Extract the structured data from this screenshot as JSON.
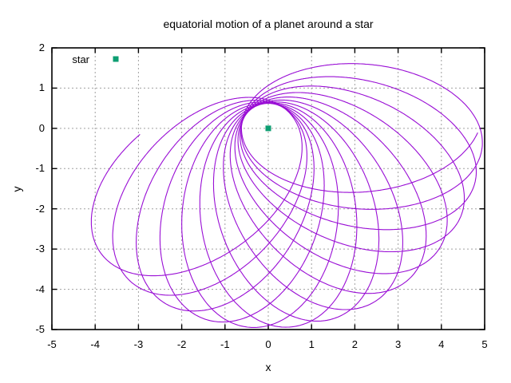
{
  "title": "equatorial motion of a planet around a star",
  "chart_data": {
    "type": "line",
    "title": "equatorial motion of a planet around a star",
    "xlabel": "x",
    "ylabel": "y",
    "xlim": [
      -5,
      5
    ],
    "ylim": [
      -5,
      2
    ],
    "xticks": [
      "-5",
      "-4",
      "-3",
      "-2",
      "-1",
      "0",
      "1",
      "2",
      "3",
      "4",
      "5"
    ],
    "yticks": [
      "2",
      "1",
      "0",
      "-1",
      "-2",
      "-3",
      "-4",
      "-5"
    ],
    "grid": true,
    "legend": {
      "position": "top-left",
      "entries": [
        {
          "label": "star",
          "marker": "filled-square",
          "color": "#0d9e72"
        }
      ]
    },
    "points": [
      {
        "name": "star",
        "x": 0,
        "y": 0,
        "marker": "filled-square",
        "color": "#0d9e72",
        "size": 7
      }
    ],
    "series": [
      {
        "name": "planet trajectory",
        "color": "#9400d3",
        "model": "precessing ellipse around focus: r(X)=p/(1+e*cos X), phi=phi_start+(X-X_start)/k, counterclockwise motion with prograde apsidal precession",
        "params": {
          "p": 1.102,
          "e": 0.778,
          "k": 0.9698,
          "phi_start_deg": 183,
          "X_start_deg": 144,
          "X_end_deg": 4853,
          "step_deg": 0.5,
          "perihelion_distance": 0.62,
          "aphelion_distance": 4.96,
          "precession_per_orbit_deg": 11.2,
          "start_point": [
            -2.97,
            -0.16
          ],
          "end_point": [
            4.84,
            -0.12
          ]
        }
      }
    ],
    "colors": {
      "trajectory": "#9400d3",
      "star": "#0d9e72",
      "grid": "#a0a0a0",
      "border": "#000000",
      "background": "#ffffff"
    }
  },
  "plot_layout_values": {
    "note_visible_pixels_only": "axis frame with inward mirrored ticks, dashed gray grid at every tick"
  }
}
